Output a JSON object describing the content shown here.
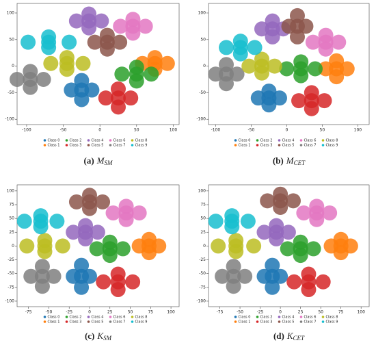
{
  "chart_data": [
    {
      "type": "scatter",
      "caption": {
        "label": "(a)",
        "symbol": "M",
        "subscript": "SM"
      },
      "xlim": [
        -113,
        108
      ],
      "ylim": [
        -110,
        118
      ],
      "xticks": [
        -100,
        -50,
        0,
        50,
        100
      ],
      "yticks": [
        -100,
        -50,
        0,
        50,
        100
      ],
      "series": [
        {
          "name": "Class 0",
          "color": "#1f77b4",
          "x": [
            -25,
            -39,
            -11,
            -25,
            -25
          ],
          "values": [
            -45,
            -45,
            -45,
            -27,
            -63
          ]
        },
        {
          "name": "Class 1",
          "color": "#ff7f0e",
          "x": [
            75,
            58,
            92,
            75,
            75
          ],
          "values": [
            5,
            5,
            5,
            16,
            -6
          ]
        },
        {
          "name": "Class 2",
          "color": "#2ca02c",
          "x": [
            50,
            30,
            70,
            50,
            50
          ],
          "values": [
            -15,
            -15,
            -15,
            -2,
            -28
          ]
        },
        {
          "name": "Class 3",
          "color": "#d62728",
          "x": [
            25,
            8,
            42,
            25,
            25
          ],
          "values": [
            -60,
            -60,
            -60,
            -43,
            -77
          ]
        },
        {
          "name": "Class 4",
          "color": "#9467bd",
          "x": [
            -15,
            -32,
            2,
            -15,
            -15
          ],
          "values": [
            85,
            85,
            85,
            98,
            72
          ]
        },
        {
          "name": "Class 5",
          "color": "#8c564b",
          "x": [
            10,
            -7,
            27,
            10,
            10
          ],
          "values": [
            45,
            45,
            45,
            58,
            32
          ]
        },
        {
          "name": "Class 6",
          "color": "#e377c2",
          "x": [
            45,
            28,
            62,
            45,
            45
          ],
          "values": [
            75,
            75,
            75,
            88,
            62
          ]
        },
        {
          "name": "Class 7",
          "color": "#7f7f7f",
          "x": [
            -95,
            -113,
            -77,
            -95,
            -95
          ],
          "values": [
            -25,
            -25,
            -25,
            -10,
            -40
          ]
        },
        {
          "name": "Class 8",
          "color": "#bcbd22",
          "x": [
            -45,
            -67,
            -23,
            -45,
            -45
          ],
          "values": [
            5,
            5,
            5,
            16,
            -6
          ]
        },
        {
          "name": "Class 9",
          "color": "#17becf",
          "x": [
            -70,
            -98,
            -42,
            -70,
            -70
          ],
          "values": [
            45,
            45,
            45,
            55,
            35
          ]
        }
      ]
    },
    {
      "type": "scatter",
      "caption": {
        "label": "(b)",
        "symbol": "M",
        "subscript": "CET"
      },
      "xlim": [
        -110,
        116
      ],
      "ylim": [
        -110,
        118
      ],
      "xticks": [
        -100,
        -50,
        0,
        50,
        100
      ],
      "yticks": [
        -100,
        -50,
        0,
        50,
        100
      ],
      "series": [
        {
          "name": "Class 0",
          "color": "#1f77b4",
          "x": [
            -25,
            -40,
            -10,
            -25,
            -25
          ],
          "values": [
            -60,
            -60,
            -60,
            -47,
            -73
          ]
        },
        {
          "name": "Class 1",
          "color": "#ff7f0e",
          "x": [
            70,
            55,
            85,
            70,
            70
          ],
          "values": [
            -5,
            -5,
            -5,
            10,
            -20
          ]
        },
        {
          "name": "Class 2",
          "color": "#2ca02c",
          "x": [
            20,
            0,
            40,
            20,
            20
          ],
          "values": [
            -5,
            -5,
            -5,
            8,
            -18
          ]
        },
        {
          "name": "Class 3",
          "color": "#d62728",
          "x": [
            35,
            17,
            53,
            35,
            35
          ],
          "values": [
            -65,
            -65,
            -65,
            -50,
            -80
          ]
        },
        {
          "name": "Class 4",
          "color": "#9467bd",
          "x": [
            -20,
            -35,
            -5,
            -20,
            -20
          ],
          "values": [
            70,
            70,
            70,
            85,
            55
          ]
        },
        {
          "name": "Class 5",
          "color": "#8c564b",
          "x": [
            15,
            3,
            27,
            15,
            15
          ],
          "values": [
            75,
            75,
            75,
            95,
            55
          ]
        },
        {
          "name": "Class 6",
          "color": "#e377c2",
          "x": [
            55,
            37,
            73,
            55,
            55
          ],
          "values": [
            45,
            45,
            45,
            58,
            32
          ]
        },
        {
          "name": "Class 7",
          "color": "#7f7f7f",
          "x": [
            -85,
            -100,
            -70,
            -85,
            -85
          ],
          "values": [
            -15,
            -15,
            -15,
            3,
            -33
          ]
        },
        {
          "name": "Class 8",
          "color": "#bcbd22",
          "x": [
            -35,
            -53,
            -17,
            -35,
            -35
          ],
          "values": [
            0,
            0,
            0,
            13,
            -13
          ]
        },
        {
          "name": "Class 9",
          "color": "#17becf",
          "x": [
            -65,
            -85,
            -45,
            -65,
            -65
          ],
          "values": [
            35,
            35,
            35,
            47,
            23
          ]
        }
      ]
    },
    {
      "type": "scatter",
      "caption": {
        "label": "(c)",
        "symbol": "K",
        "subscript": "SM"
      },
      "xlim": [
        -89,
        110
      ],
      "ylim": [
        -110,
        111
      ],
      "xticks": [
        -75,
        -50,
        -25,
        0,
        25,
        50,
        75,
        100
      ],
      "yticks": [
        -100,
        -75,
        -50,
        -25,
        0,
        25,
        50,
        75,
        100
      ],
      "series": [
        {
          "name": "Class 0",
          "color": "#1f77b4",
          "x": [
            -10,
            -20,
            0,
            -10,
            -10
          ],
          "values": [
            -55,
            -55,
            -55,
            -35,
            -75
          ]
        },
        {
          "name": "Class 1",
          "color": "#ff7f0e",
          "x": [
            73,
            61,
            85,
            73,
            73
          ],
          "values": [
            0,
            0,
            0,
            12,
            -12
          ]
        },
        {
          "name": "Class 2",
          "color": "#2ca02c",
          "x": [
            25,
            9,
            41,
            25,
            25
          ],
          "values": [
            -5,
            -5,
            -5,
            7,
            -17
          ]
        },
        {
          "name": "Class 3",
          "color": "#d62728",
          "x": [
            35,
            17,
            53,
            35,
            35
          ],
          "values": [
            -65,
            -65,
            -65,
            -51,
            -79
          ]
        },
        {
          "name": "Class 4",
          "color": "#9467bd",
          "x": [
            -5,
            -20,
            10,
            -5,
            -5
          ],
          "values": [
            25,
            25,
            25,
            37,
            13
          ]
        },
        {
          "name": "Class 5",
          "color": "#8c564b",
          "x": [
            0,
            -16,
            16,
            0,
            0
          ],
          "values": [
            80,
            80,
            80,
            92,
            68
          ]
        },
        {
          "name": "Class 6",
          "color": "#e377c2",
          "x": [
            45,
            29,
            61,
            45,
            45
          ],
          "values": [
            60,
            60,
            60,
            72,
            48
          ]
        },
        {
          "name": "Class 7",
          "color": "#7f7f7f",
          "x": [
            -58,
            -72,
            -44,
            -58,
            -58
          ],
          "values": [
            -55,
            -55,
            -55,
            -37,
            -73
          ]
        },
        {
          "name": "Class 8",
          "color": "#bcbd22",
          "x": [
            -55,
            -77,
            -33,
            -55,
            -55
          ],
          "values": [
            0,
            0,
            0,
            10,
            -10
          ]
        },
        {
          "name": "Class 9",
          "color": "#17becf",
          "x": [
            -60,
            -80,
            -40,
            -60,
            -60
          ],
          "values": [
            45,
            45,
            45,
            55,
            35
          ]
        }
      ]
    },
    {
      "type": "scatter",
      "caption": {
        "label": "(d)",
        "symbol": "K",
        "subscript": "CET"
      },
      "xlim": [
        -89,
        110
      ],
      "ylim": [
        -110,
        111
      ],
      "xticks": [
        -75,
        -50,
        -25,
        0,
        25,
        50,
        75,
        100
      ],
      "yticks": [
        -100,
        -75,
        -50,
        -25,
        0,
        25,
        50,
        75,
        100
      ],
      "series": [
        {
          "name": "Class 0",
          "color": "#1f77b4",
          "x": [
            -10,
            -20,
            0,
            -10,
            -10
          ],
          "values": [
            -55,
            -55,
            -55,
            -35,
            -75
          ]
        },
        {
          "name": "Class 1",
          "color": "#ff7f0e",
          "x": [
            75,
            63,
            87,
            75,
            75
          ],
          "values": [
            0,
            0,
            0,
            12,
            -12
          ]
        },
        {
          "name": "Class 2",
          "color": "#2ca02c",
          "x": [
            25,
            9,
            41,
            25,
            25
          ],
          "values": [
            -5,
            -5,
            -5,
            7,
            -17
          ]
        },
        {
          "name": "Class 3",
          "color": "#d62728",
          "x": [
            35,
            17,
            53,
            35,
            35
          ],
          "values": [
            -65,
            -65,
            -65,
            -51,
            -79
          ]
        },
        {
          "name": "Class 4",
          "color": "#9467bd",
          "x": [
            -5,
            -20,
            10,
            -5,
            -5
          ],
          "values": [
            25,
            25,
            25,
            37,
            13
          ]
        },
        {
          "name": "Class 5",
          "color": "#8c564b",
          "x": [
            0,
            -16,
            16,
            0,
            0
          ],
          "values": [
            82,
            82,
            82,
            94,
            70
          ]
        },
        {
          "name": "Class 6",
          "color": "#e377c2",
          "x": [
            45,
            29,
            61,
            45,
            45
          ],
          "values": [
            60,
            60,
            60,
            72,
            48
          ]
        },
        {
          "name": "Class 7",
          "color": "#7f7f7f",
          "x": [
            -58,
            -72,
            -44,
            -58,
            -58
          ],
          "values": [
            -55,
            -55,
            -55,
            -37,
            -73
          ]
        },
        {
          "name": "Class 8",
          "color": "#bcbd22",
          "x": [
            -55,
            -77,
            -33,
            -55,
            -55
          ],
          "values": [
            0,
            0,
            0,
            10,
            -10
          ]
        },
        {
          "name": "Class 9",
          "color": "#17becf",
          "x": [
            -60,
            -80,
            -40,
            -60,
            -60
          ],
          "values": [
            45,
            45,
            45,
            55,
            35
          ]
        }
      ]
    }
  ]
}
